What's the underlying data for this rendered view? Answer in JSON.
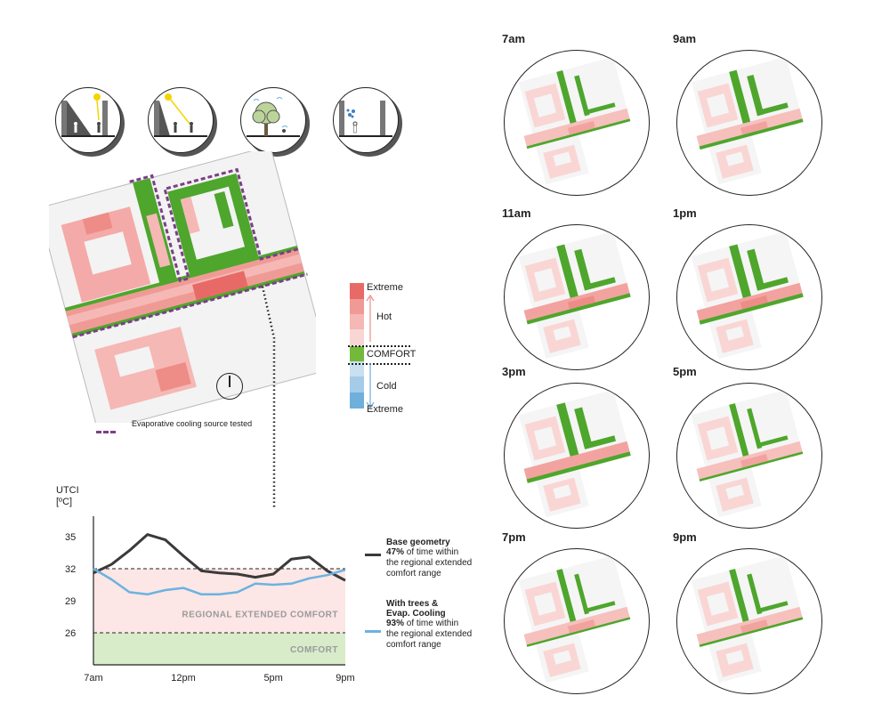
{
  "icons": [
    {
      "name": "shade-wall-icon"
    },
    {
      "name": "sun-exposure-icon"
    },
    {
      "name": "tree-cooling-icon"
    },
    {
      "name": "evaporative-mist-icon"
    }
  ],
  "scale": {
    "extreme_hot": "Extreme",
    "hot": "Hot",
    "comfort": "COMFORT",
    "cold": "Cold",
    "extreme_cold": "Extreme",
    "colors": {
      "hot": [
        "#e86a66",
        "#f09a96",
        "#f5b8b5",
        "#f9d6d4"
      ],
      "comfort": "#74b93a",
      "cold": [
        "#c9e0f0",
        "#a4cbe8",
        "#6fafdc"
      ]
    }
  },
  "note": {
    "text": "Evaporative cooling source tested",
    "color": "#7b3f87"
  },
  "chart_data": {
    "type": "line",
    "ylabel_line1": "UTCI",
    "ylabel_line2": "[ºC]",
    "x_ticks": [
      "7am",
      "12pm",
      "5pm",
      "9pm"
    ],
    "y_ticks": [
      35,
      32,
      29,
      26
    ],
    "ylim": [
      23,
      36.5
    ],
    "x": [
      7,
      8,
      9,
      10,
      11,
      12,
      13,
      14,
      15,
      16,
      17,
      18,
      19,
      20,
      21
    ],
    "series": [
      {
        "name": "Base geometry",
        "color": "#3a3a3a",
        "values": [
          31.6,
          32.4,
          33.7,
          35.2,
          34.7,
          33.2,
          31.8,
          31.6,
          31.5,
          31.2,
          31.5,
          32.9,
          33.1,
          31.8,
          30.9
        ]
      },
      {
        "name": "With trees & Evap. Cooling",
        "color": "#6ab3e0",
        "values": [
          32.0,
          31.0,
          29.8,
          29.6,
          30.0,
          30.2,
          29.6,
          29.6,
          29.8,
          30.6,
          30.5,
          30.6,
          31.1,
          31.4,
          31.9
        ]
      }
    ],
    "bands": [
      {
        "label": "REGIONAL EXTENDED COMFORT",
        "from": 26,
        "to": 32,
        "color": "#fce6e6"
      },
      {
        "label": "COMFORT",
        "from": 23,
        "to": 26,
        "color": "#d8ecc9"
      }
    ],
    "legend": [
      {
        "title": "Base geometry",
        "percent": "47%",
        "desc_tail": " of time within",
        "desc2": "the regional extended",
        "desc3": "comfort range"
      },
      {
        "title": "With trees &",
        "title2": "Evap. Cooling",
        "percent": "93%",
        "desc_tail": " of time within",
        "desc2": "the regional extended",
        "desc3": "comfort range"
      }
    ]
  },
  "times": [
    "7am",
    "9am",
    "11am",
    "1pm",
    "3pm",
    "5pm",
    "7pm",
    "9pm"
  ]
}
